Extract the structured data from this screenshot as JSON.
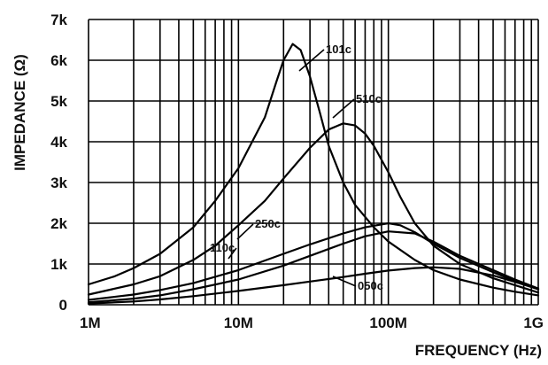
{
  "chart_data": {
    "type": "line",
    "title": "",
    "xlabel": "FREQUENCY (Hz)",
    "ylabel": "IMPEDANCE (Ω)",
    "x_scale": "log",
    "x_ticks": [
      1000000,
      10000000,
      100000000,
      1000000000
    ],
    "x_tick_labels": [
      "1M",
      "10M",
      "100M",
      "1G"
    ],
    "xlim": [
      1000000,
      1000000000
    ],
    "ylim": [
      0,
      7000
    ],
    "y_ticks": [
      0,
      1000,
      2000,
      3000,
      4000,
      5000,
      6000,
      7000
    ],
    "y_tick_labels": [
      "0",
      "1k",
      "2k",
      "3k",
      "4k",
      "5k",
      "6k",
      "7k"
    ],
    "grid": true,
    "legend": "none",
    "series": [
      {
        "name": "101c",
        "points": [
          [
            1000000,
            500
          ],
          [
            1500000,
            700
          ],
          [
            2000000,
            900
          ],
          [
            3000000,
            1250
          ],
          [
            5000000,
            1900
          ],
          [
            7000000,
            2550
          ],
          [
            10000000,
            3350
          ],
          [
            15000000,
            4600
          ],
          [
            18000000,
            5500
          ],
          [
            20000000,
            6000
          ],
          [
            23000000,
            6400
          ],
          [
            26000000,
            6250
          ],
          [
            30000000,
            5600
          ],
          [
            35000000,
            4700
          ],
          [
            40000000,
            3900
          ],
          [
            50000000,
            3000
          ],
          [
            60000000,
            2450
          ],
          [
            80000000,
            1900
          ],
          [
            100000000,
            1550
          ],
          [
            150000000,
            1100
          ],
          [
            200000000,
            850
          ],
          [
            300000000,
            620
          ],
          [
            500000000,
            420
          ],
          [
            700000000,
            320
          ],
          [
            1000000000,
            230
          ]
        ]
      },
      {
        "name": "510c",
        "points": [
          [
            1000000,
            250
          ],
          [
            2000000,
            500
          ],
          [
            3000000,
            700
          ],
          [
            5000000,
            1100
          ],
          [
            7000000,
            1450
          ],
          [
            10000000,
            1950
          ],
          [
            15000000,
            2550
          ],
          [
            20000000,
            3100
          ],
          [
            30000000,
            3850
          ],
          [
            40000000,
            4300
          ],
          [
            50000000,
            4450
          ],
          [
            60000000,
            4400
          ],
          [
            70000000,
            4200
          ],
          [
            80000000,
            3900
          ],
          [
            100000000,
            3250
          ],
          [
            120000000,
            2650
          ],
          [
            150000000,
            2000
          ],
          [
            200000000,
            1450
          ],
          [
            300000000,
            1000
          ],
          [
            500000000,
            650
          ],
          [
            700000000,
            480
          ],
          [
            1000000000,
            300
          ]
        ]
      },
      {
        "name": "250c",
        "points": [
          [
            1000000,
            120
          ],
          [
            2000000,
            250
          ],
          [
            3000000,
            360
          ],
          [
            5000000,
            530
          ],
          [
            10000000,
            850
          ],
          [
            20000000,
            1250
          ],
          [
            30000000,
            1480
          ],
          [
            50000000,
            1750
          ],
          [
            70000000,
            1900
          ],
          [
            100000000,
            2000
          ],
          [
            120000000,
            1950
          ],
          [
            150000000,
            1780
          ],
          [
            200000000,
            1500
          ],
          [
            300000000,
            1150
          ],
          [
            500000000,
            800
          ],
          [
            700000000,
            580
          ],
          [
            1000000000,
            380
          ]
        ]
      },
      {
        "name": "110c",
        "points": [
          [
            1000000,
            60
          ],
          [
            2000000,
            150
          ],
          [
            3000000,
            230
          ],
          [
            5000000,
            380
          ],
          [
            10000000,
            620
          ],
          [
            20000000,
            960
          ],
          [
            30000000,
            1200
          ],
          [
            50000000,
            1500
          ],
          [
            70000000,
            1680
          ],
          [
            100000000,
            1800
          ],
          [
            150000000,
            1750
          ],
          [
            200000000,
            1550
          ],
          [
            300000000,
            1200
          ],
          [
            500000000,
            850
          ],
          [
            700000000,
            620
          ],
          [
            1000000000,
            400
          ]
        ]
      },
      {
        "name": "050c",
        "points": [
          [
            1000000,
            30
          ],
          [
            2000000,
            80
          ],
          [
            3000000,
            130
          ],
          [
            5000000,
            210
          ],
          [
            10000000,
            340
          ],
          [
            20000000,
            480
          ],
          [
            30000000,
            570
          ],
          [
            50000000,
            680
          ],
          [
            70000000,
            760
          ],
          [
            100000000,
            840
          ],
          [
            150000000,
            900
          ],
          [
            200000000,
            920
          ],
          [
            300000000,
            880
          ],
          [
            500000000,
            720
          ],
          [
            700000000,
            560
          ],
          [
            1000000000,
            380
          ]
        ]
      }
    ]
  }
}
